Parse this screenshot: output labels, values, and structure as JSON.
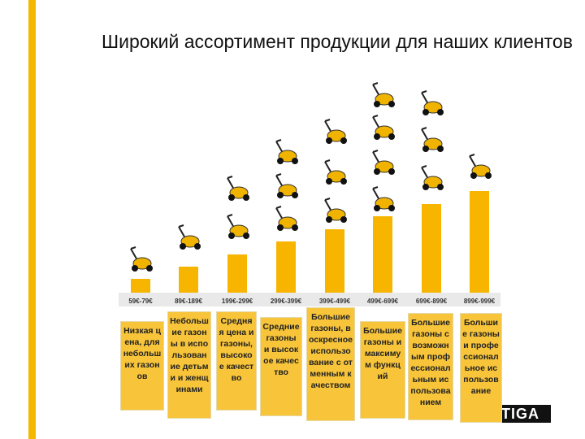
{
  "header": {
    "title": "Широкий ассортимент продукции для наших клиентов"
  },
  "columns": [
    {
      "price": "59€-79€",
      "description": "Низкая цена, для небольших газонов"
    },
    {
      "price": "89€-189€",
      "description": "Небольшие газоны в использование детьми и женщинами"
    },
    {
      "price": "199€-299€",
      "description": "Средняя цена и газоны, высокое качество"
    },
    {
      "price": "299€-399€",
      "description": "Средние газоны и высокое качество"
    },
    {
      "price": "399€-499€",
      "description": "Большие газоны, воскресное использование с отменным качеством"
    },
    {
      "price": "499€-699€",
      "description": "Большие газоны и максимум функций"
    },
    {
      "price": "699€-899€",
      "description": "Большие газоны с возможным профессиональным использованием"
    },
    {
      "price": "899€-999€",
      "description": "Большие газоны и профессиональное использование"
    }
  ],
  "logo": "STIGA"
}
